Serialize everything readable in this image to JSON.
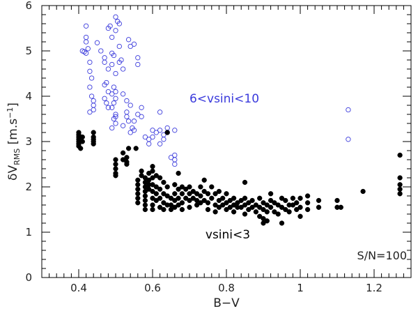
{
  "chart_data": {
    "type": "scatter",
    "xlabel": "B−V",
    "ylabel_main": "δV",
    "ylabel_sub": "RMS",
    "ylabel_unit": "[m.s",
    "ylabel_exp": "−1",
    "ylabel_close": "]",
    "xlim": [
      0.3,
      1.3
    ],
    "ylim": [
      0,
      6
    ],
    "xticks": [
      0.4,
      0.6,
      0.8,
      1,
      1.2
    ],
    "xtick_labels": [
      "0.4",
      "0.6",
      "0.8",
      "1",
      "1.2"
    ],
    "yticks": [
      0,
      1,
      2,
      3,
      4,
      5,
      6
    ],
    "ytick_labels": [
      "0",
      "1",
      "2",
      "3",
      "4",
      "5",
      "6"
    ],
    "grid": false,
    "annotations": {
      "fast": "6<vsini<10",
      "slow": "vsini<3",
      "snr": "S/N=100"
    },
    "colors": {
      "fast": "#3a3adc",
      "slow": "#000000"
    },
    "series": [
      {
        "marker": "open-circle",
        "points": [
          [
            0.41,
            5.0
          ],
          [
            0.415,
            4.98
          ],
          [
            0.42,
            5.55
          ],
          [
            0.42,
            5.3
          ],
          [
            0.42,
            5.2
          ],
          [
            0.425,
            5.05
          ],
          [
            0.42,
            4.95
          ],
          [
            0.43,
            4.75
          ],
          [
            0.43,
            4.55
          ],
          [
            0.435,
            4.4
          ],
          [
            0.43,
            4.2
          ],
          [
            0.435,
            4.0
          ],
          [
            0.44,
            3.9
          ],
          [
            0.44,
            3.8
          ],
          [
            0.44,
            3.7
          ],
          [
            0.43,
            3.65
          ],
          [
            0.45,
            5.18
          ],
          [
            0.46,
            5.0
          ],
          [
            0.47,
            4.85
          ],
          [
            0.47,
            4.75
          ],
          [
            0.48,
            4.6
          ],
          [
            0.475,
            4.3
          ],
          [
            0.47,
            4.25
          ],
          [
            0.48,
            4.1
          ],
          [
            0.47,
            3.95
          ],
          [
            0.475,
            3.85
          ],
          [
            0.48,
            3.75
          ],
          [
            0.48,
            5.5
          ],
          [
            0.485,
            5.55
          ],
          [
            0.49,
            5.3
          ],
          [
            0.49,
            4.95
          ],
          [
            0.495,
            4.9
          ],
          [
            0.49,
            4.7
          ],
          [
            0.5,
            4.5
          ],
          [
            0.495,
            4.2
          ],
          [
            0.5,
            4.1
          ],
          [
            0.49,
            4.05
          ],
          [
            0.5,
            3.95
          ],
          [
            0.495,
            3.85
          ],
          [
            0.49,
            3.75
          ],
          [
            0.5,
            3.6
          ],
          [
            0.495,
            3.5
          ],
          [
            0.5,
            3.4
          ],
          [
            0.49,
            3.3
          ],
          [
            0.5,
            3.55
          ],
          [
            0.5,
            5.75
          ],
          [
            0.505,
            5.65
          ],
          [
            0.5,
            5.45
          ],
          [
            0.51,
            5.6
          ],
          [
            0.51,
            5.1
          ],
          [
            0.515,
            4.8
          ],
          [
            0.51,
            4.75
          ],
          [
            0.52,
            4.6
          ],
          [
            0.52,
            4.05
          ],
          [
            0.53,
            3.9
          ],
          [
            0.53,
            3.65
          ],
          [
            0.535,
            3.45
          ],
          [
            0.54,
            3.2
          ],
          [
            0.52,
            3.35
          ],
          [
            0.53,
            3.55
          ],
          [
            0.545,
            3.3
          ],
          [
            0.55,
            3.25
          ],
          [
            0.55,
            3.45
          ],
          [
            0.54,
            5.1
          ],
          [
            0.55,
            5.15
          ],
          [
            0.535,
            5.25
          ],
          [
            0.54,
            3.8
          ],
          [
            0.56,
            4.85
          ],
          [
            0.56,
            4.7
          ],
          [
            0.57,
            3.75
          ],
          [
            0.57,
            3.55
          ],
          [
            0.56,
            3.6
          ],
          [
            0.58,
            3.1
          ],
          [
            0.59,
            3.05
          ],
          [
            0.59,
            2.95
          ],
          [
            0.6,
            3.25
          ],
          [
            0.6,
            3.1
          ],
          [
            0.61,
            3.2
          ],
          [
            0.62,
            3.65
          ],
          [
            0.62,
            3.25
          ],
          [
            0.63,
            3.15
          ],
          [
            0.63,
            3.05
          ],
          [
            0.62,
            2.95
          ],
          [
            0.64,
            3.3
          ],
          [
            0.64,
            3.2
          ],
          [
            0.66,
            3.25
          ],
          [
            0.66,
            2.7
          ],
          [
            0.66,
            2.6
          ],
          [
            0.66,
            2.5
          ],
          [
            0.65,
            2.65
          ],
          [
            1.13,
            3.7
          ],
          [
            1.13,
            3.05
          ]
        ]
      },
      {
        "marker": "filled-circle",
        "points": [
          [
            0.4,
            3.2
          ],
          [
            0.4,
            3.15
          ],
          [
            0.4,
            3.1
          ],
          [
            0.4,
            3.05
          ],
          [
            0.4,
            3.0
          ],
          [
            0.4,
            2.95
          ],
          [
            0.4,
            2.9
          ],
          [
            0.405,
            2.85
          ],
          [
            0.41,
            3.1
          ],
          [
            0.41,
            3.0
          ],
          [
            0.44,
            3.2
          ],
          [
            0.44,
            3.1
          ],
          [
            0.44,
            3.05
          ],
          [
            0.44,
            3.0
          ],
          [
            0.44,
            2.95
          ],
          [
            0.5,
            2.6
          ],
          [
            0.5,
            2.5
          ],
          [
            0.5,
            2.4
          ],
          [
            0.5,
            2.3
          ],
          [
            0.5,
            2.25
          ],
          [
            0.52,
            2.75
          ],
          [
            0.52,
            2.6
          ],
          [
            0.53,
            2.55
          ],
          [
            0.53,
            2.65
          ],
          [
            0.535,
            2.85
          ],
          [
            0.53,
            2.5
          ],
          [
            0.56,
            2.15
          ],
          [
            0.56,
            2.05
          ],
          [
            0.56,
            1.95
          ],
          [
            0.56,
            1.85
          ],
          [
            0.56,
            1.75
          ],
          [
            0.56,
            1.65
          ],
          [
            0.555,
            2.85
          ],
          [
            0.57,
            2.35
          ],
          [
            0.57,
            2.25
          ],
          [
            0.58,
            2.2
          ],
          [
            0.58,
            2.1
          ],
          [
            0.58,
            2.0
          ],
          [
            0.58,
            1.9
          ],
          [
            0.58,
            1.8
          ],
          [
            0.58,
            1.7
          ],
          [
            0.58,
            1.6
          ],
          [
            0.58,
            1.5
          ],
          [
            0.59,
            2.3
          ],
          [
            0.59,
            2.15
          ],
          [
            0.59,
            2.05
          ],
          [
            0.59,
            1.95
          ],
          [
            0.6,
            2.45
          ],
          [
            0.6,
            2.35
          ],
          [
            0.6,
            2.2
          ],
          [
            0.6,
            2.05
          ],
          [
            0.6,
            1.9
          ],
          [
            0.6,
            1.75
          ],
          [
            0.6,
            1.6
          ],
          [
            0.6,
            1.5
          ],
          [
            0.61,
            2.25
          ],
          [
            0.61,
            2.0
          ],
          [
            0.61,
            1.85
          ],
          [
            0.61,
            1.7
          ],
          [
            0.62,
            2.2
          ],
          [
            0.62,
            1.95
          ],
          [
            0.62,
            1.75
          ],
          [
            0.62,
            1.55
          ],
          [
            0.63,
            2.1
          ],
          [
            0.63,
            1.85
          ],
          [
            0.63,
            1.65
          ],
          [
            0.63,
            1.5
          ],
          [
            0.64,
            3.2
          ],
          [
            0.64,
            2.0
          ],
          [
            0.64,
            1.8
          ],
          [
            0.64,
            1.6
          ],
          [
            0.65,
            1.75
          ],
          [
            0.65,
            1.6
          ],
          [
            0.65,
            1.5
          ],
          [
            0.66,
            2.05
          ],
          [
            0.66,
            1.85
          ],
          [
            0.66,
            1.7
          ],
          [
            0.66,
            1.55
          ],
          [
            0.67,
            1.95
          ],
          [
            0.67,
            1.75
          ],
          [
            0.67,
            1.6
          ],
          [
            0.67,
            2.3
          ],
          [
            0.68,
            2.0
          ],
          [
            0.68,
            1.85
          ],
          [
            0.68,
            1.65
          ],
          [
            0.68,
            1.5
          ],
          [
            0.69,
            1.95
          ],
          [
            0.69,
            1.75
          ],
          [
            0.7,
            2.0
          ],
          [
            0.7,
            1.85
          ],
          [
            0.7,
            1.7
          ],
          [
            0.7,
            1.55
          ],
          [
            0.71,
            1.9
          ],
          [
            0.71,
            1.75
          ],
          [
            0.72,
            1.85
          ],
          [
            0.72,
            1.7
          ],
          [
            0.72,
            1.6
          ],
          [
            0.73,
            2.0
          ],
          [
            0.73,
            1.8
          ],
          [
            0.73,
            1.65
          ],
          [
            0.74,
            2.15
          ],
          [
            0.74,
            1.9
          ],
          [
            0.74,
            1.7
          ],
          [
            0.75,
            1.85
          ],
          [
            0.75,
            1.65
          ],
          [
            0.75,
            1.5
          ],
          [
            0.76,
            2.0
          ],
          [
            0.76,
            1.75
          ],
          [
            0.77,
            1.85
          ],
          [
            0.77,
            1.6
          ],
          [
            0.77,
            1.45
          ],
          [
            0.78,
            1.9
          ],
          [
            0.78,
            1.7
          ],
          [
            0.78,
            1.55
          ],
          [
            0.79,
            1.75
          ],
          [
            0.79,
            1.6
          ],
          [
            0.8,
            1.85
          ],
          [
            0.8,
            1.65
          ],
          [
            0.8,
            1.5
          ],
          [
            0.81,
            1.7
          ],
          [
            0.81,
            1.55
          ],
          [
            0.82,
            1.75
          ],
          [
            0.82,
            1.6
          ],
          [
            0.82,
            1.45
          ],
          [
            0.83,
            1.65
          ],
          [
            0.83,
            1.55
          ],
          [
            0.84,
            1.7
          ],
          [
            0.84,
            1.55
          ],
          [
            0.85,
            2.1
          ],
          [
            0.85,
            1.75
          ],
          [
            0.85,
            1.6
          ],
          [
            0.85,
            1.4
          ],
          [
            0.86,
            1.65
          ],
          [
            0.86,
            1.5
          ],
          [
            0.87,
            1.7
          ],
          [
            0.87,
            1.55
          ],
          [
            0.88,
            1.6
          ],
          [
            0.88,
            1.45
          ],
          [
            0.89,
            1.75
          ],
          [
            0.89,
            1.55
          ],
          [
            0.89,
            1.35
          ],
          [
            0.9,
            1.65
          ],
          [
            0.9,
            1.5
          ],
          [
            0.9,
            1.3
          ],
          [
            0.9,
            1.2
          ],
          [
            0.91,
            1.6
          ],
          [
            0.91,
            1.45
          ],
          [
            0.91,
            1.25
          ],
          [
            0.92,
            1.85
          ],
          [
            0.92,
            1.7
          ],
          [
            0.92,
            1.55
          ],
          [
            0.93,
            1.65
          ],
          [
            0.93,
            1.45
          ],
          [
            0.94,
            1.6
          ],
          [
            0.94,
            1.4
          ],
          [
            0.95,
            1.75
          ],
          [
            0.95,
            1.55
          ],
          [
            0.95,
            1.2
          ],
          [
            0.96,
            1.7
          ],
          [
            0.96,
            1.5
          ],
          [
            0.97,
            1.6
          ],
          [
            0.97,
            1.45
          ],
          [
            0.98,
            1.75
          ],
          [
            0.98,
            1.6
          ],
          [
            0.99,
            1.65
          ],
          [
            0.99,
            1.5
          ],
          [
            1.0,
            1.75
          ],
          [
            1.0,
            1.55
          ],
          [
            1.0,
            1.35
          ],
          [
            1.02,
            1.8
          ],
          [
            1.02,
            1.65
          ],
          [
            1.02,
            1.5
          ],
          [
            1.05,
            1.7
          ],
          [
            1.05,
            1.55
          ],
          [
            1.1,
            1.7
          ],
          [
            1.1,
            1.55
          ],
          [
            1.11,
            1.55
          ],
          [
            1.17,
            1.9
          ],
          [
            1.27,
            2.7
          ],
          [
            1.27,
            2.2
          ],
          [
            1.27,
            2.05
          ],
          [
            1.27,
            1.95
          ],
          [
            1.27,
            1.85
          ]
        ]
      }
    ]
  }
}
